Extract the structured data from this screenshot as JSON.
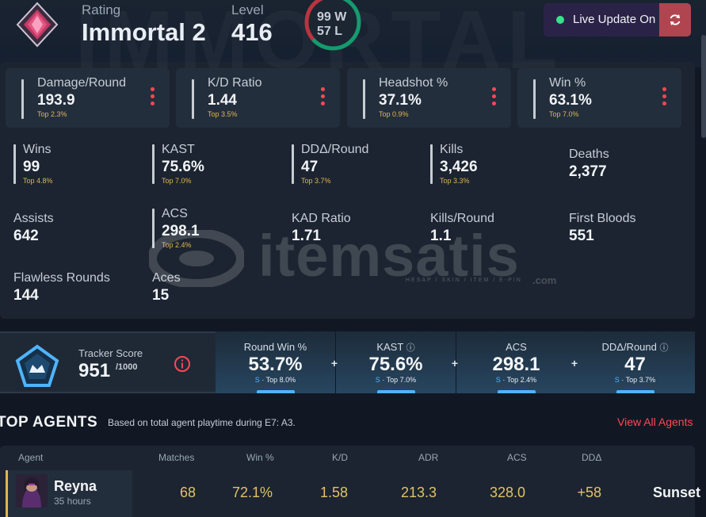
{
  "watermark": {
    "background_word": "IMMORTAL",
    "brand": "itemsatis",
    "tagline": "HESAP / SKIN / ITEM / E-PIN",
    "domain": ".com"
  },
  "header": {
    "rating_label": "Rating",
    "rating_value": "Immortal 2",
    "level_label": "Level",
    "level_value": "416",
    "wins": "99 W",
    "losses": "57 L",
    "win_count": 99,
    "loss_count": 57,
    "live_update_label": "Live Update On"
  },
  "cards": [
    {
      "label": "Damage/Round",
      "value": "193.9",
      "top": "Top 2.3%"
    },
    {
      "label": "K/D Ratio",
      "value": "1.44",
      "top": "Top 3.5%"
    },
    {
      "label": "Headshot %",
      "value": "37.1%",
      "top": "Top 0.9%"
    },
    {
      "label": "Win %",
      "value": "63.1%",
      "top": "Top 7.0%"
    }
  ],
  "stats": [
    {
      "label": "Wins",
      "value": "99",
      "top": "Top 4.8%"
    },
    {
      "label": "KAST",
      "value": "75.6%",
      "top": "Top 7.0%"
    },
    {
      "label": "DDΔ/Round",
      "value": "47",
      "top": "Top 3.7%"
    },
    {
      "label": "Kills",
      "value": "3,426",
      "top": "Top 3.3%"
    },
    {
      "label": "Deaths",
      "value": "2,377"
    },
    {
      "label": "Assists",
      "value": "642"
    },
    {
      "label": "ACS",
      "value": "298.1",
      "top": "Top 2.4%"
    },
    {
      "label": "KAD Ratio",
      "value": "1.71"
    },
    {
      "label": "Kills/Round",
      "value": "1.1"
    },
    {
      "label": "First Bloods",
      "value": "551"
    },
    {
      "label": "Flawless Rounds",
      "value": "144"
    },
    {
      "label": "Aces",
      "value": "15"
    }
  ],
  "tracker": {
    "label": "Tracker Score",
    "value": "951",
    "max": "/1000",
    "cells": [
      {
        "label": "Round Win %",
        "value": "53.7%",
        "grade": "S",
        "top": "Top 8.0%"
      },
      {
        "label": "KAST",
        "value": "75.6%",
        "grade": "S",
        "top": "Top 7.0%"
      },
      {
        "label": "ACS",
        "value": "298.1",
        "grade": "S",
        "top": "Top 2.4%"
      },
      {
        "label": "DDΔ/Round",
        "value": "47",
        "grade": "S",
        "top": "Top 3.7%"
      }
    ]
  },
  "agents": {
    "title": "TOP AGENTS",
    "subtitle": "Based on total agent playtime during E7: A3.",
    "view_all": "View All Agents",
    "columns": [
      "Agent",
      "Matches",
      "Win %",
      "K/D",
      "ADR",
      "ACS",
      "DDΔ"
    ],
    "rows": [
      {
        "name": "Reyna",
        "hours": "35 hours",
        "matches": "68",
        "win": "72.1%",
        "kd": "1.58",
        "adr": "213.3",
        "acs": "328.0",
        "dd": "+58",
        "map": "Sunset"
      }
    ]
  },
  "colors": {
    "accent_red": "#ff4655",
    "gold": "#e3b54f",
    "blue": "#4fb4ff",
    "win_green": "#159b6e",
    "loss_red": "#b8353f"
  }
}
